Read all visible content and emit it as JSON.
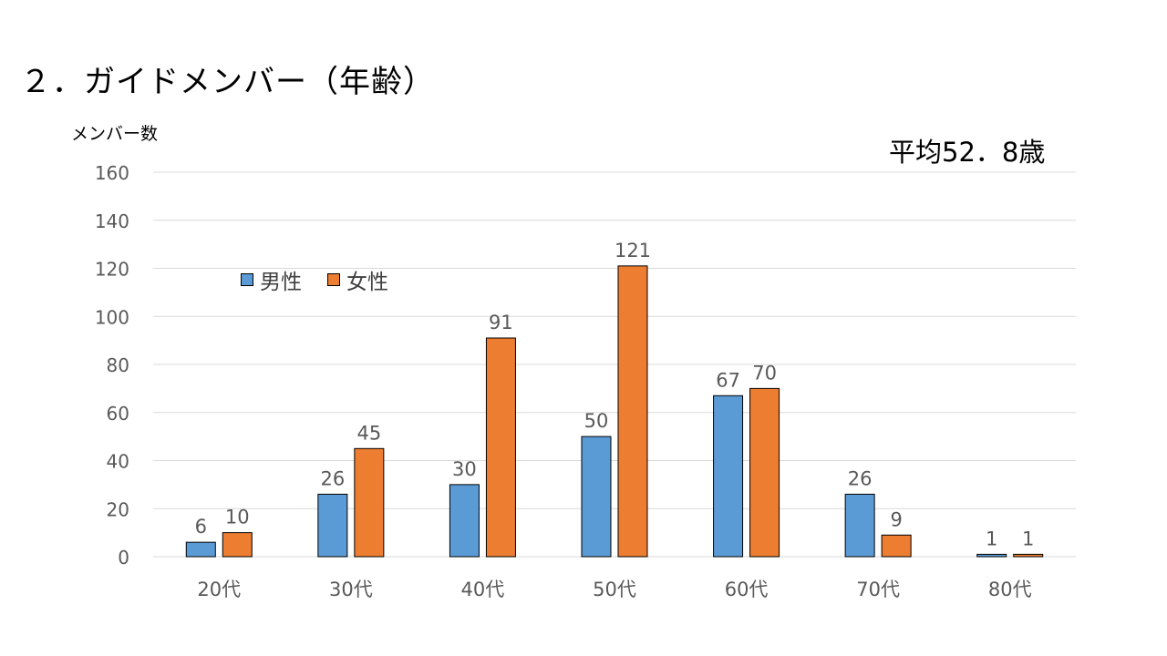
{
  "slide": {
    "title": "２．ガイドメンバー（年齢）",
    "average_note": "平均52．8歳"
  },
  "chart_data": {
    "type": "bar",
    "title": "",
    "ylabel": "メンバー数",
    "xlabel": "",
    "ylim": [
      0,
      160
    ],
    "y_ticks": [
      0,
      20,
      40,
      60,
      80,
      100,
      120,
      140,
      160
    ],
    "grid": true,
    "legend_position": "upper-left inside plot",
    "categories": [
      "20代",
      "30代",
      "40代",
      "50代",
      "60代",
      "70代",
      "80代"
    ],
    "series": [
      {
        "name": "男性",
        "color": "#5B9BD5",
        "values": [
          6,
          26,
          30,
          50,
          67,
          26,
          1
        ]
      },
      {
        "name": "女性",
        "color": "#ED7D31",
        "values": [
          10,
          45,
          91,
          121,
          70,
          9,
          1
        ]
      }
    ]
  },
  "style": {
    "gridline_color": "#D9D9D9",
    "bar_outline_color": "#000000",
    "axis_text_color": "#595959"
  }
}
